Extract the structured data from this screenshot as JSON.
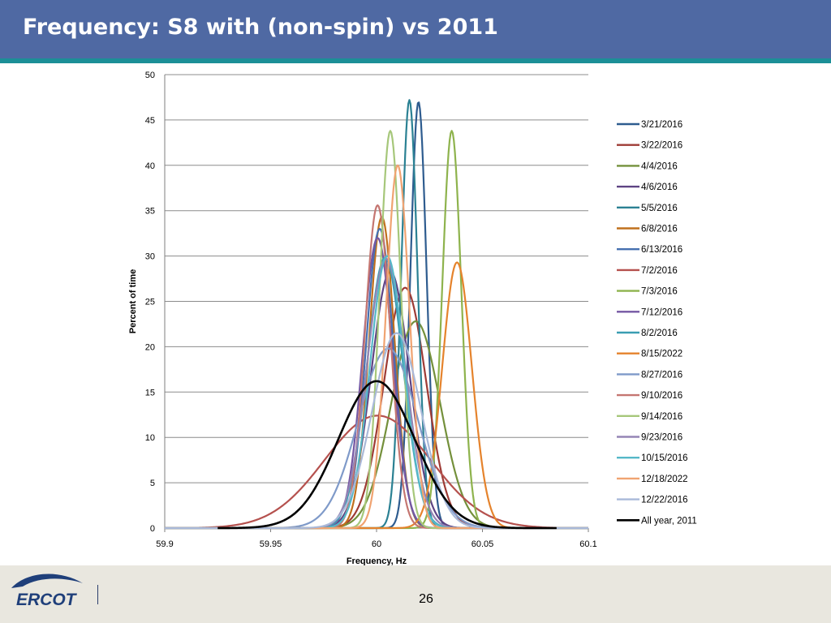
{
  "slide": {
    "title": "Frequency: S8 with (non-spin) vs 2011",
    "page_number": "26",
    "logo_text": "ERCOT"
  },
  "chart_data": {
    "type": "line",
    "title": "",
    "xlabel": "Frequency, Hz",
    "ylabel": "Percent of time",
    "xlim": [
      59.9,
      60.1
    ],
    "ylim": [
      0,
      50
    ],
    "xticks": [
      59.9,
      59.95,
      60,
      60.05,
      60.1
    ],
    "xtick_labels": [
      "59.9",
      "59.95",
      "60",
      "60.05",
      "60.1"
    ],
    "yticks": [
      0,
      5,
      10,
      15,
      20,
      25,
      30,
      35,
      40,
      45,
      50
    ],
    "grid": "horizontal",
    "legend_position": "right",
    "series": [
      {
        "name": "3/21/2016",
        "color": "#2e5c8f",
        "mean": 60.0198,
        "sd": 0.0038,
        "peak": 47.0
      },
      {
        "name": "3/22/2016",
        "color": "#9e3b35",
        "mean": 60.0135,
        "sd": 0.01,
        "peak": 26.5
      },
      {
        "name": "4/4/2016",
        "color": "#74903b",
        "mean": 60.0185,
        "sd": 0.0115,
        "peak": 22.8
      },
      {
        "name": "4/6/2016",
        "color": "#5e4383",
        "mean": 60.0065,
        "sd": 0.009,
        "peak": 28.3
      },
      {
        "name": "5/5/2016",
        "color": "#2b8193",
        "mean": 60.0155,
        "sd": 0.0038,
        "peak": 47.2
      },
      {
        "name": "6/8/2016",
        "color": "#c0701d",
        "mean": 60.0025,
        "sd": 0.006,
        "peak": 34.3
      },
      {
        "name": "6/13/2016",
        "color": "#4670b0",
        "mean": 60.0015,
        "sd": 0.0065,
        "peak": 33.0
      },
      {
        "name": "7/2/2016",
        "color": "#b5514e",
        "mean": 60.0005,
        "sd": 0.025,
        "peak": 12.4
      },
      {
        "name": "7/3/2016",
        "color": "#8eb34d",
        "mean": 60.0355,
        "sd": 0.0045,
        "peak": 43.8
      },
      {
        "name": "7/12/2016",
        "color": "#7457a3",
        "mean": 60.0005,
        "sd": 0.007,
        "peak": 32.0
      },
      {
        "name": "8/2/2016",
        "color": "#3a9db2",
        "mean": 60.004,
        "sd": 0.0085,
        "peak": 29.8
      },
      {
        "name": "8/15/2022",
        "color": "#e5832c",
        "mean": 60.038,
        "sd": 0.007,
        "peak": 29.3
      },
      {
        "name": "8/27/2016",
        "color": "#7f9ac9",
        "mean": 60.0055,
        "sd": 0.014,
        "peak": 19.8
      },
      {
        "name": "9/10/2016",
        "color": "#c57671",
        "mean": 60.0005,
        "sd": 0.006,
        "peak": 35.6
      },
      {
        "name": "9/14/2016",
        "color": "#a6c77a",
        "mean": 60.0065,
        "sd": 0.005,
        "peak": 43.8
      },
      {
        "name": "9/23/2016",
        "color": "#9585b5",
        "mean": 60.0045,
        "sd": 0.009,
        "peak": 29.7
      },
      {
        "name": "10/15/2016",
        "color": "#56b8c8",
        "mean": 60.005,
        "sd": 0.008,
        "peak": 30.0
      },
      {
        "name": "12/18/2022",
        "color": "#f0a371",
        "mean": 60.01,
        "sd": 0.0055,
        "peak": 40.0
      },
      {
        "name": "12/22/2016",
        "color": "#a9b9d9",
        "mean": 60.0095,
        "sd": 0.0115,
        "peak": 21.5
      },
      {
        "name": "All year, 2011",
        "color": "#000000",
        "mean": 60.0,
        "sd": 0.018,
        "peak": 16.2,
        "x_start": 59.925,
        "x_end": 60.085
      }
    ]
  }
}
